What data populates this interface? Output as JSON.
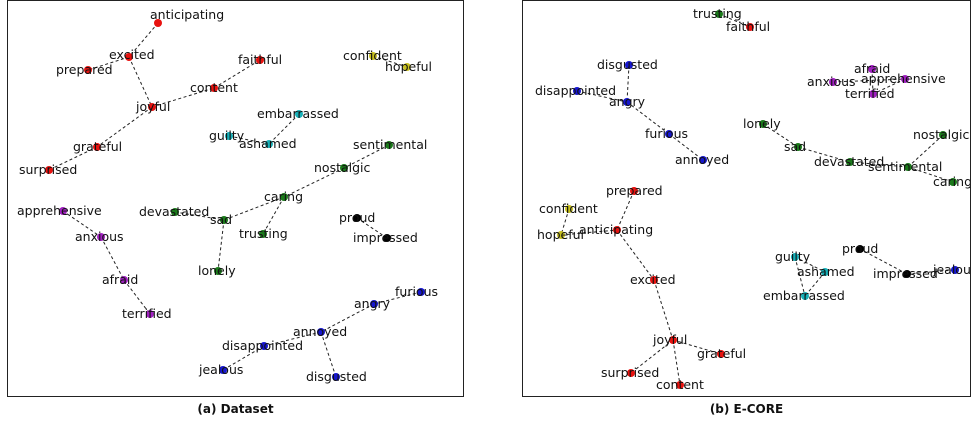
{
  "captions": {
    "a": "(a) Dataset",
    "b": "(b) E-CORE"
  },
  "colors": {
    "red": "#e8120f",
    "green": "#1a7a1a",
    "blue": "#1616d0",
    "cyan": "#16b0b8",
    "purple": "#a020c0",
    "olive": "#c8c020",
    "black": "#000000"
  },
  "panels": [
    {
      "id": "a",
      "nodes": [
        {
          "label": "anticipating",
          "color": "red"
        },
        {
          "label": "excited",
          "color": "red"
        },
        {
          "label": "prepared",
          "color": "red"
        },
        {
          "label": "joyful",
          "color": "red"
        },
        {
          "label": "faithful",
          "color": "red"
        },
        {
          "label": "content",
          "color": "red"
        },
        {
          "label": "grateful",
          "color": "red"
        },
        {
          "label": "surprised",
          "color": "red"
        },
        {
          "label": "confident",
          "color": "olive"
        },
        {
          "label": "hopeful",
          "color": "olive"
        },
        {
          "label": "embarrassed",
          "color": "cyan"
        },
        {
          "label": "guilty",
          "color": "cyan"
        },
        {
          "label": "ashamed",
          "color": "cyan"
        },
        {
          "label": "sentimental",
          "color": "green"
        },
        {
          "label": "nostalgic",
          "color": "green"
        },
        {
          "label": "caring",
          "color": "green"
        },
        {
          "label": "devastated",
          "color": "green"
        },
        {
          "label": "sad",
          "color": "green"
        },
        {
          "label": "trusting",
          "color": "green"
        },
        {
          "label": "lonely",
          "color": "green"
        },
        {
          "label": "apprehensive",
          "color": "purple"
        },
        {
          "label": "anxious",
          "color": "purple"
        },
        {
          "label": "afraid",
          "color": "purple"
        },
        {
          "label": "terrified",
          "color": "purple"
        },
        {
          "label": "proud",
          "color": "black"
        },
        {
          "label": "impressed",
          "color": "black"
        },
        {
          "label": "furious",
          "color": "blue"
        },
        {
          "label": "angry",
          "color": "blue"
        },
        {
          "label": "annoyed",
          "color": "blue"
        },
        {
          "label": "disappointed",
          "color": "blue"
        },
        {
          "label": "jealous",
          "color": "blue"
        },
        {
          "label": "disgusted",
          "color": "blue"
        }
      ],
      "edges": [
        [
          "anticipating",
          "excited"
        ],
        [
          "excited",
          "prepared"
        ],
        [
          "excited",
          "joyful"
        ],
        [
          "joyful",
          "content"
        ],
        [
          "content",
          "faithful"
        ],
        [
          "joyful",
          "grateful"
        ],
        [
          "grateful",
          "surprised"
        ],
        [
          "confident",
          "hopeful"
        ],
        [
          "embarrassed",
          "ashamed"
        ],
        [
          "guilty",
          "ashamed"
        ],
        [
          "sentimental",
          "nostalgic"
        ],
        [
          "nostalgic",
          "caring"
        ],
        [
          "caring",
          "sad"
        ],
        [
          "caring",
          "trusting"
        ],
        [
          "devastated",
          "sad"
        ],
        [
          "sad",
          "lonely"
        ],
        [
          "apprehensive",
          "anxious"
        ],
        [
          "anxious",
          "afraid"
        ],
        [
          "afraid",
          "terrified"
        ],
        [
          "proud",
          "impressed"
        ],
        [
          "furious",
          "angry"
        ],
        [
          "angry",
          "annoyed"
        ],
        [
          "annoyed",
          "disappointed"
        ],
        [
          "annoyed",
          "disgusted"
        ],
        [
          "disappointed",
          "jealous"
        ]
      ]
    },
    {
      "id": "b",
      "nodes": [
        {
          "label": "trusting",
          "color": "green"
        },
        {
          "label": "faithful",
          "color": "red"
        },
        {
          "label": "disgusted",
          "color": "blue"
        },
        {
          "label": "disappointed",
          "color": "blue"
        },
        {
          "label": "angry",
          "color": "blue"
        },
        {
          "label": "furious",
          "color": "blue"
        },
        {
          "label": "annoyed",
          "color": "blue"
        },
        {
          "label": "afraid",
          "color": "purple"
        },
        {
          "label": "anxious",
          "color": "purple"
        },
        {
          "label": "apprehensive",
          "color": "purple"
        },
        {
          "label": "terrified",
          "color": "purple"
        },
        {
          "label": "lonely",
          "color": "green"
        },
        {
          "label": "sad",
          "color": "green"
        },
        {
          "label": "devastated",
          "color": "green"
        },
        {
          "label": "sentimental",
          "color": "green"
        },
        {
          "label": "nostalgic",
          "color": "green"
        },
        {
          "label": "caring",
          "color": "green"
        },
        {
          "label": "prepared",
          "color": "red"
        },
        {
          "label": "confident",
          "color": "olive"
        },
        {
          "label": "hopeful",
          "color": "olive"
        },
        {
          "label": "anticipating",
          "color": "red"
        },
        {
          "label": "excited",
          "color": "red"
        },
        {
          "label": "proud",
          "color": "black"
        },
        {
          "label": "impressed",
          "color": "black"
        },
        {
          "label": "jealous",
          "color": "blue"
        },
        {
          "label": "guilty",
          "color": "cyan"
        },
        {
          "label": "ashamed",
          "color": "cyan"
        },
        {
          "label": "embarrassed",
          "color": "cyan"
        },
        {
          "label": "joyful",
          "color": "red"
        },
        {
          "label": "grateful",
          "color": "red"
        },
        {
          "label": "surprised",
          "color": "red"
        },
        {
          "label": "content",
          "color": "red"
        }
      ],
      "edges": [
        [
          "trusting",
          "faithful"
        ],
        [
          "disgusted",
          "angry"
        ],
        [
          "disappointed",
          "angry"
        ],
        [
          "angry",
          "furious"
        ],
        [
          "furious",
          "annoyed"
        ],
        [
          "afraid",
          "terrified"
        ],
        [
          "anxious",
          "apprehensive"
        ],
        [
          "apprehensive",
          "terrified"
        ],
        [
          "lonely",
          "sad"
        ],
        [
          "sad",
          "devastated"
        ],
        [
          "devastated",
          "sentimental"
        ],
        [
          "sentimental",
          "nostalgic"
        ],
        [
          "sentimental",
          "caring"
        ],
        [
          "prepared",
          "anticipating"
        ],
        [
          "confident",
          "hopeful"
        ],
        [
          "hopeful",
          "anticipating"
        ],
        [
          "anticipating",
          "excited"
        ],
        [
          "excited",
          "joyful"
        ],
        [
          "proud",
          "impressed"
        ],
        [
          "impressed",
          "jealous"
        ],
        [
          "guilty",
          "ashamed"
        ],
        [
          "guilty",
          "embarrassed"
        ],
        [
          "ashamed",
          "embarrassed"
        ],
        [
          "joyful",
          "grateful"
        ],
        [
          "joyful",
          "surprised"
        ],
        [
          "joyful",
          "content"
        ]
      ]
    }
  ]
}
